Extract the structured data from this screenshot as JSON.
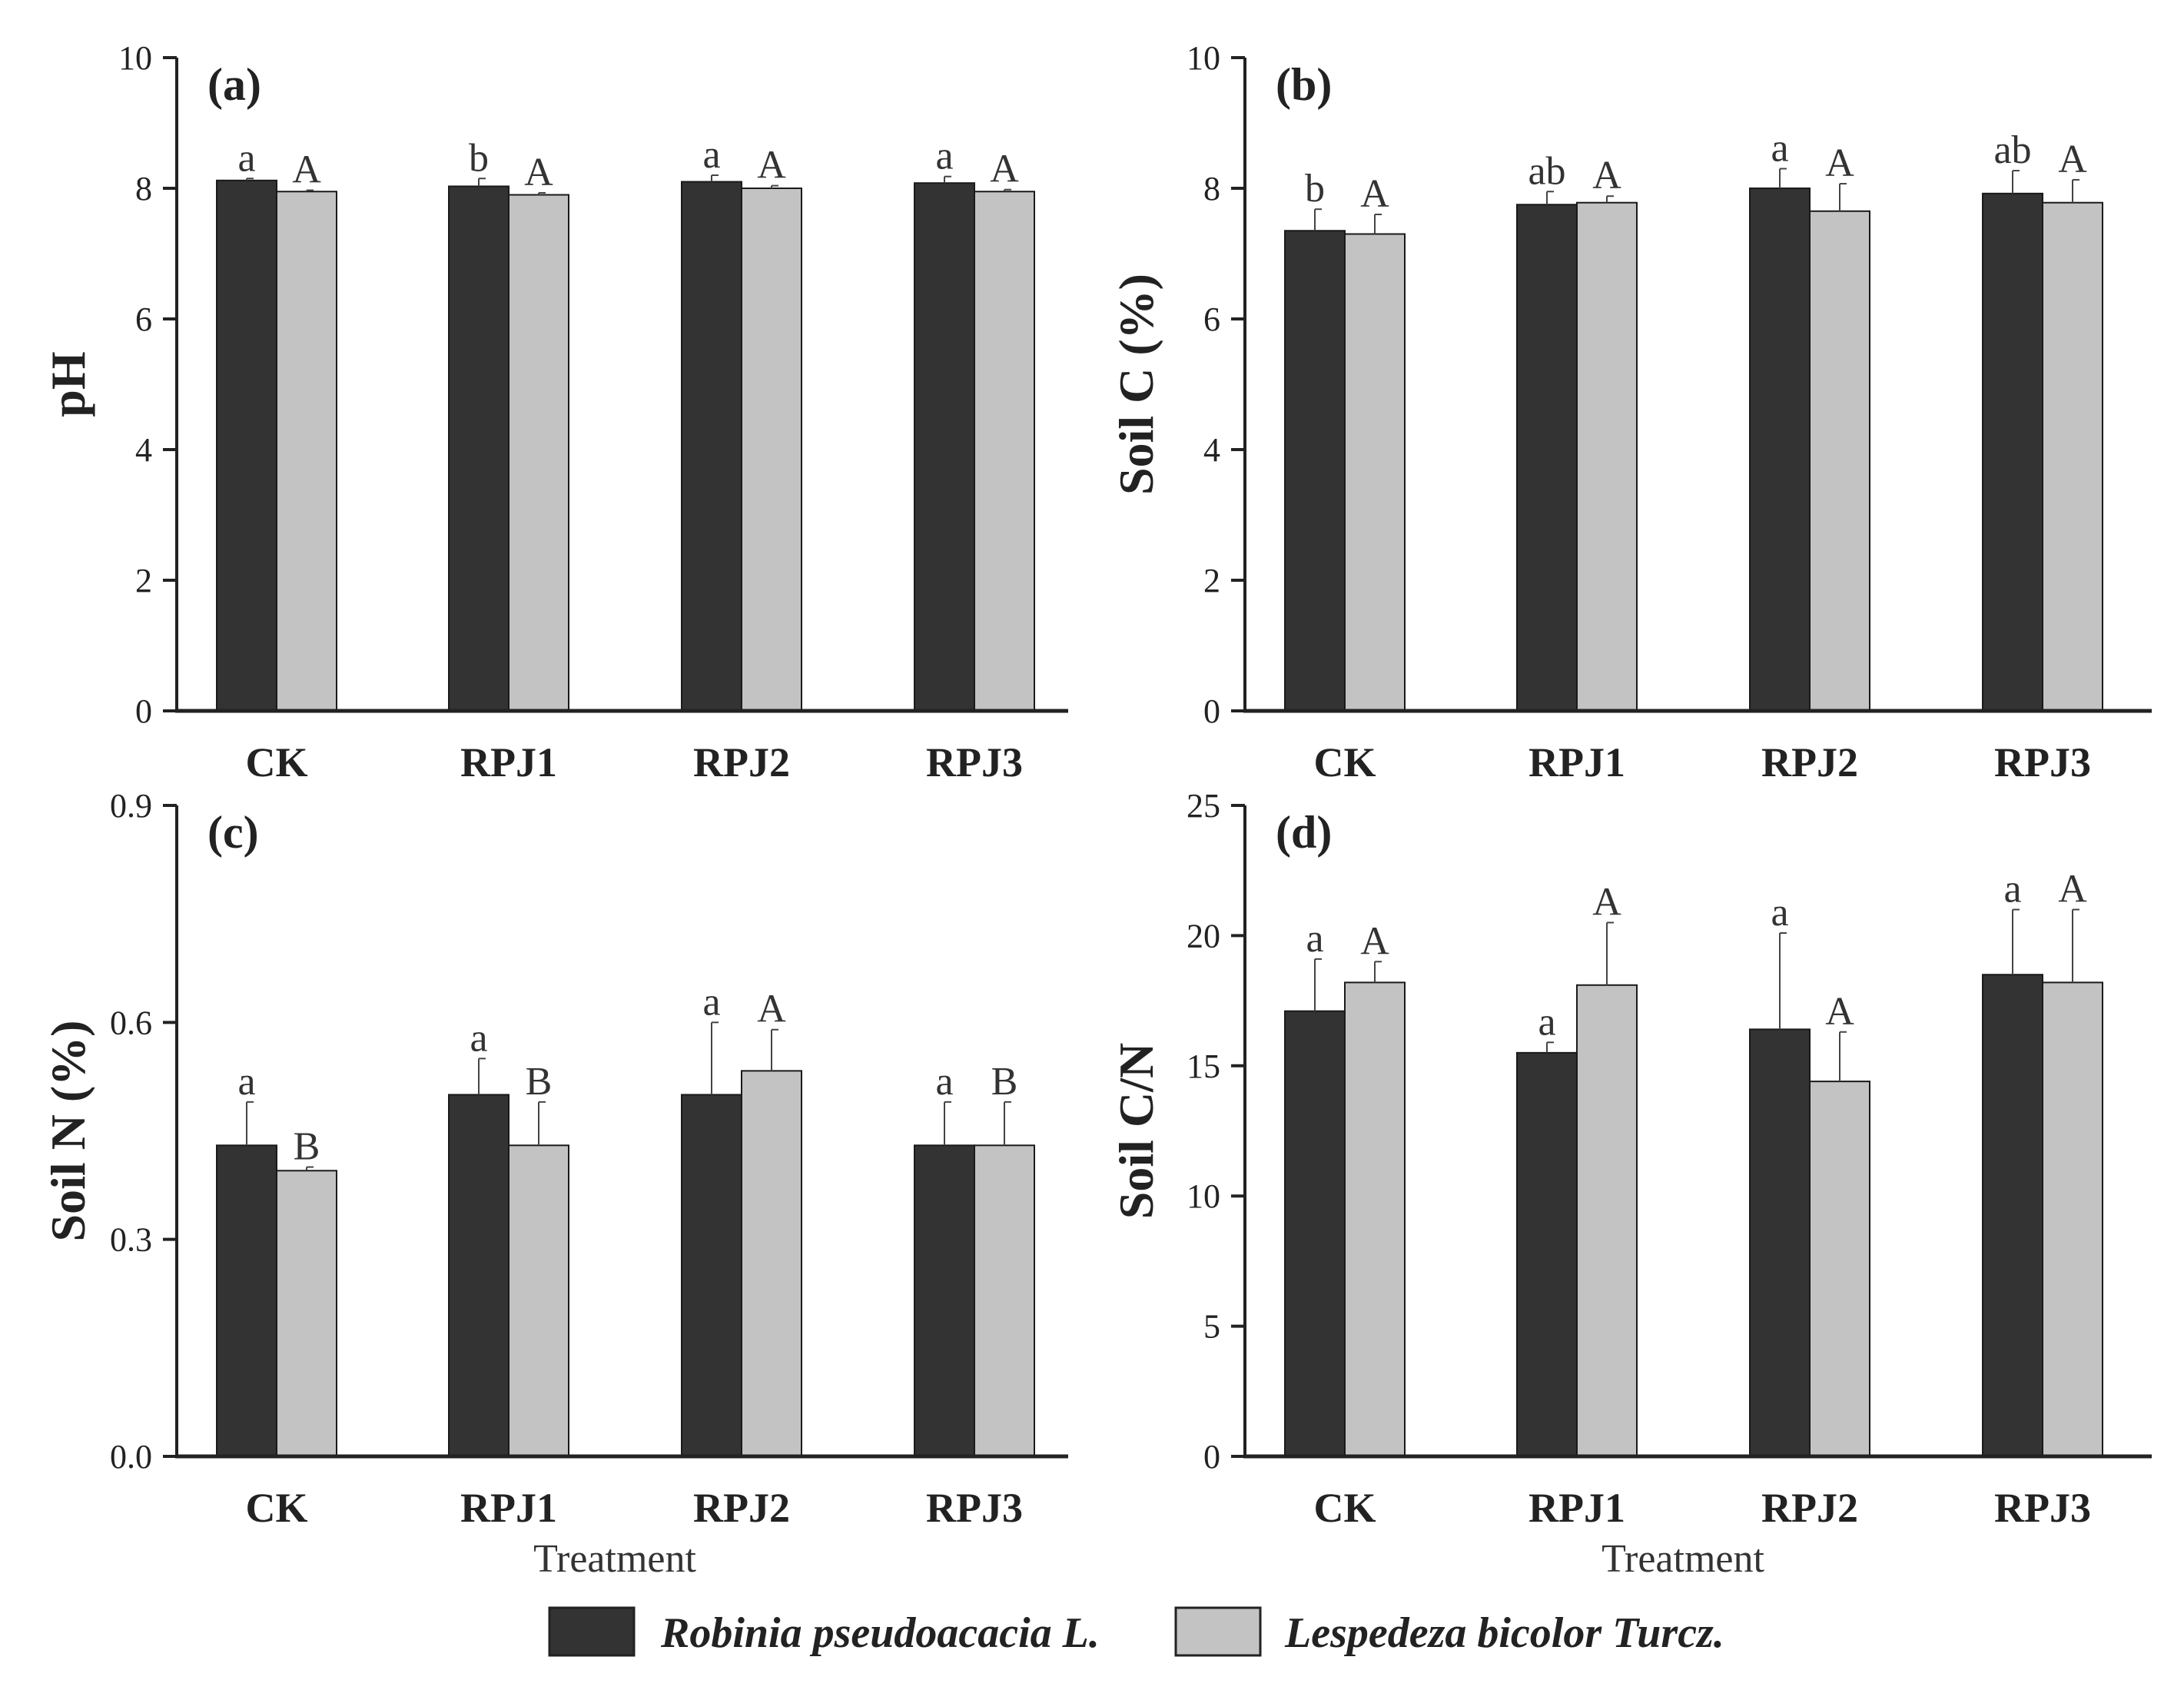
{
  "chart_data": [
    {
      "id": "a",
      "type": "bar",
      "panel_label": "(a)",
      "ylabel": "pH",
      "xlabel": "",
      "categories": [
        "CK",
        "RPJ1",
        "RPJ2",
        "RPJ3"
      ],
      "ylim": [
        0,
        10
      ],
      "yticks": [
        "0",
        "2",
        "4",
        "6",
        "8",
        "10"
      ],
      "series": [
        {
          "name": "Robinia pseudoacacia L.",
          "values": [
            8.12,
            8.03,
            8.1,
            8.08
          ],
          "errors": [
            0.03,
            0.12,
            0.1,
            0.1
          ],
          "labels": [
            "a",
            "b",
            "a",
            "a"
          ]
        },
        {
          "name": "Lespedeza bicolor Turcz.",
          "values": [
            7.95,
            7.9,
            8.0,
            7.95
          ],
          "errors": [
            0.02,
            0.03,
            0.04,
            0.03
          ],
          "labels": [
            "A",
            "A",
            "A",
            "A"
          ]
        }
      ]
    },
    {
      "id": "b",
      "type": "bar",
      "panel_label": "(b)",
      "ylabel": "Soil C (%)",
      "xlabel": "",
      "categories": [
        "CK",
        "RPJ1",
        "RPJ2",
        "RPJ3"
      ],
      "ylim": [
        0,
        10
      ],
      "yticks": [
        "0",
        "2",
        "4",
        "6",
        "8",
        "10"
      ],
      "series": [
        {
          "name": "Robinia pseudoacacia L.",
          "values": [
            7.35,
            7.75,
            8.0,
            7.92
          ],
          "errors": [
            0.33,
            0.2,
            0.3,
            0.35
          ],
          "labels": [
            "b",
            "ab",
            "a",
            "ab"
          ]
        },
        {
          "name": "Lespedeza bicolor Turcz.",
          "values": [
            7.3,
            7.78,
            7.65,
            7.78
          ],
          "errors": [
            0.3,
            0.1,
            0.42,
            0.35
          ],
          "labels": [
            "A",
            "A",
            "A",
            "A"
          ]
        }
      ]
    },
    {
      "id": "c",
      "type": "bar",
      "panel_label": "(c)",
      "ylabel": "Soil N (%)",
      "xlabel": "Treatment",
      "categories": [
        "CK",
        "RPJ1",
        "RPJ2",
        "RPJ3"
      ],
      "ylim": [
        0,
        0.9
      ],
      "yticks": [
        "0.0",
        "0.3",
        "0.6",
        "0.9"
      ],
      "series": [
        {
          "name": "Robinia pseudoacacia L.",
          "values": [
            0.43,
            0.5,
            0.5,
            0.43
          ],
          "errors": [
            0.06,
            0.05,
            0.1,
            0.06
          ],
          "labels": [
            "a",
            "a",
            "a",
            "a"
          ]
        },
        {
          "name": "Lespedeza bicolor Turcz.",
          "values": [
            0.395,
            0.43,
            0.533,
            0.43
          ],
          "errors": [
            0.005,
            0.06,
            0.057,
            0.06
          ],
          "labels": [
            "B",
            "B",
            "A",
            "B"
          ]
        }
      ]
    },
    {
      "id": "d",
      "type": "bar",
      "panel_label": "(d)",
      "ylabel": "Soil C/N",
      "xlabel": "Treatment",
      "categories": [
        "CK",
        "RPJ1",
        "RPJ2",
        "RPJ3"
      ],
      "ylim": [
        0,
        25
      ],
      "yticks": [
        "0",
        "5",
        "10",
        "15",
        "20",
        "25"
      ],
      "series": [
        {
          "name": "Robinia pseudoacacia L.",
          "values": [
            17.1,
            15.5,
            16.4,
            18.5
          ],
          "errors": [
            2.0,
            0.4,
            3.7,
            2.5
          ],
          "labels": [
            "a",
            "a",
            "a",
            "a"
          ]
        },
        {
          "name": "Lespedeza bicolor Turcz.",
          "values": [
            18.2,
            18.1,
            14.4,
            18.2
          ],
          "errors": [
            0.8,
            2.4,
            1.9,
            2.8
          ],
          "labels": [
            "A",
            "A",
            "A",
            "A"
          ]
        }
      ]
    }
  ],
  "legend": {
    "items": [
      {
        "label": "Robinia pseudoacacia L.",
        "color": "#333333"
      },
      {
        "label": "Lespedeza bicolor Turcz.",
        "color": "#c3c3c3"
      }
    ]
  },
  "colors": {
    "series1": "#333333",
    "series2": "#c3c3c3",
    "axis": "#222222"
  }
}
